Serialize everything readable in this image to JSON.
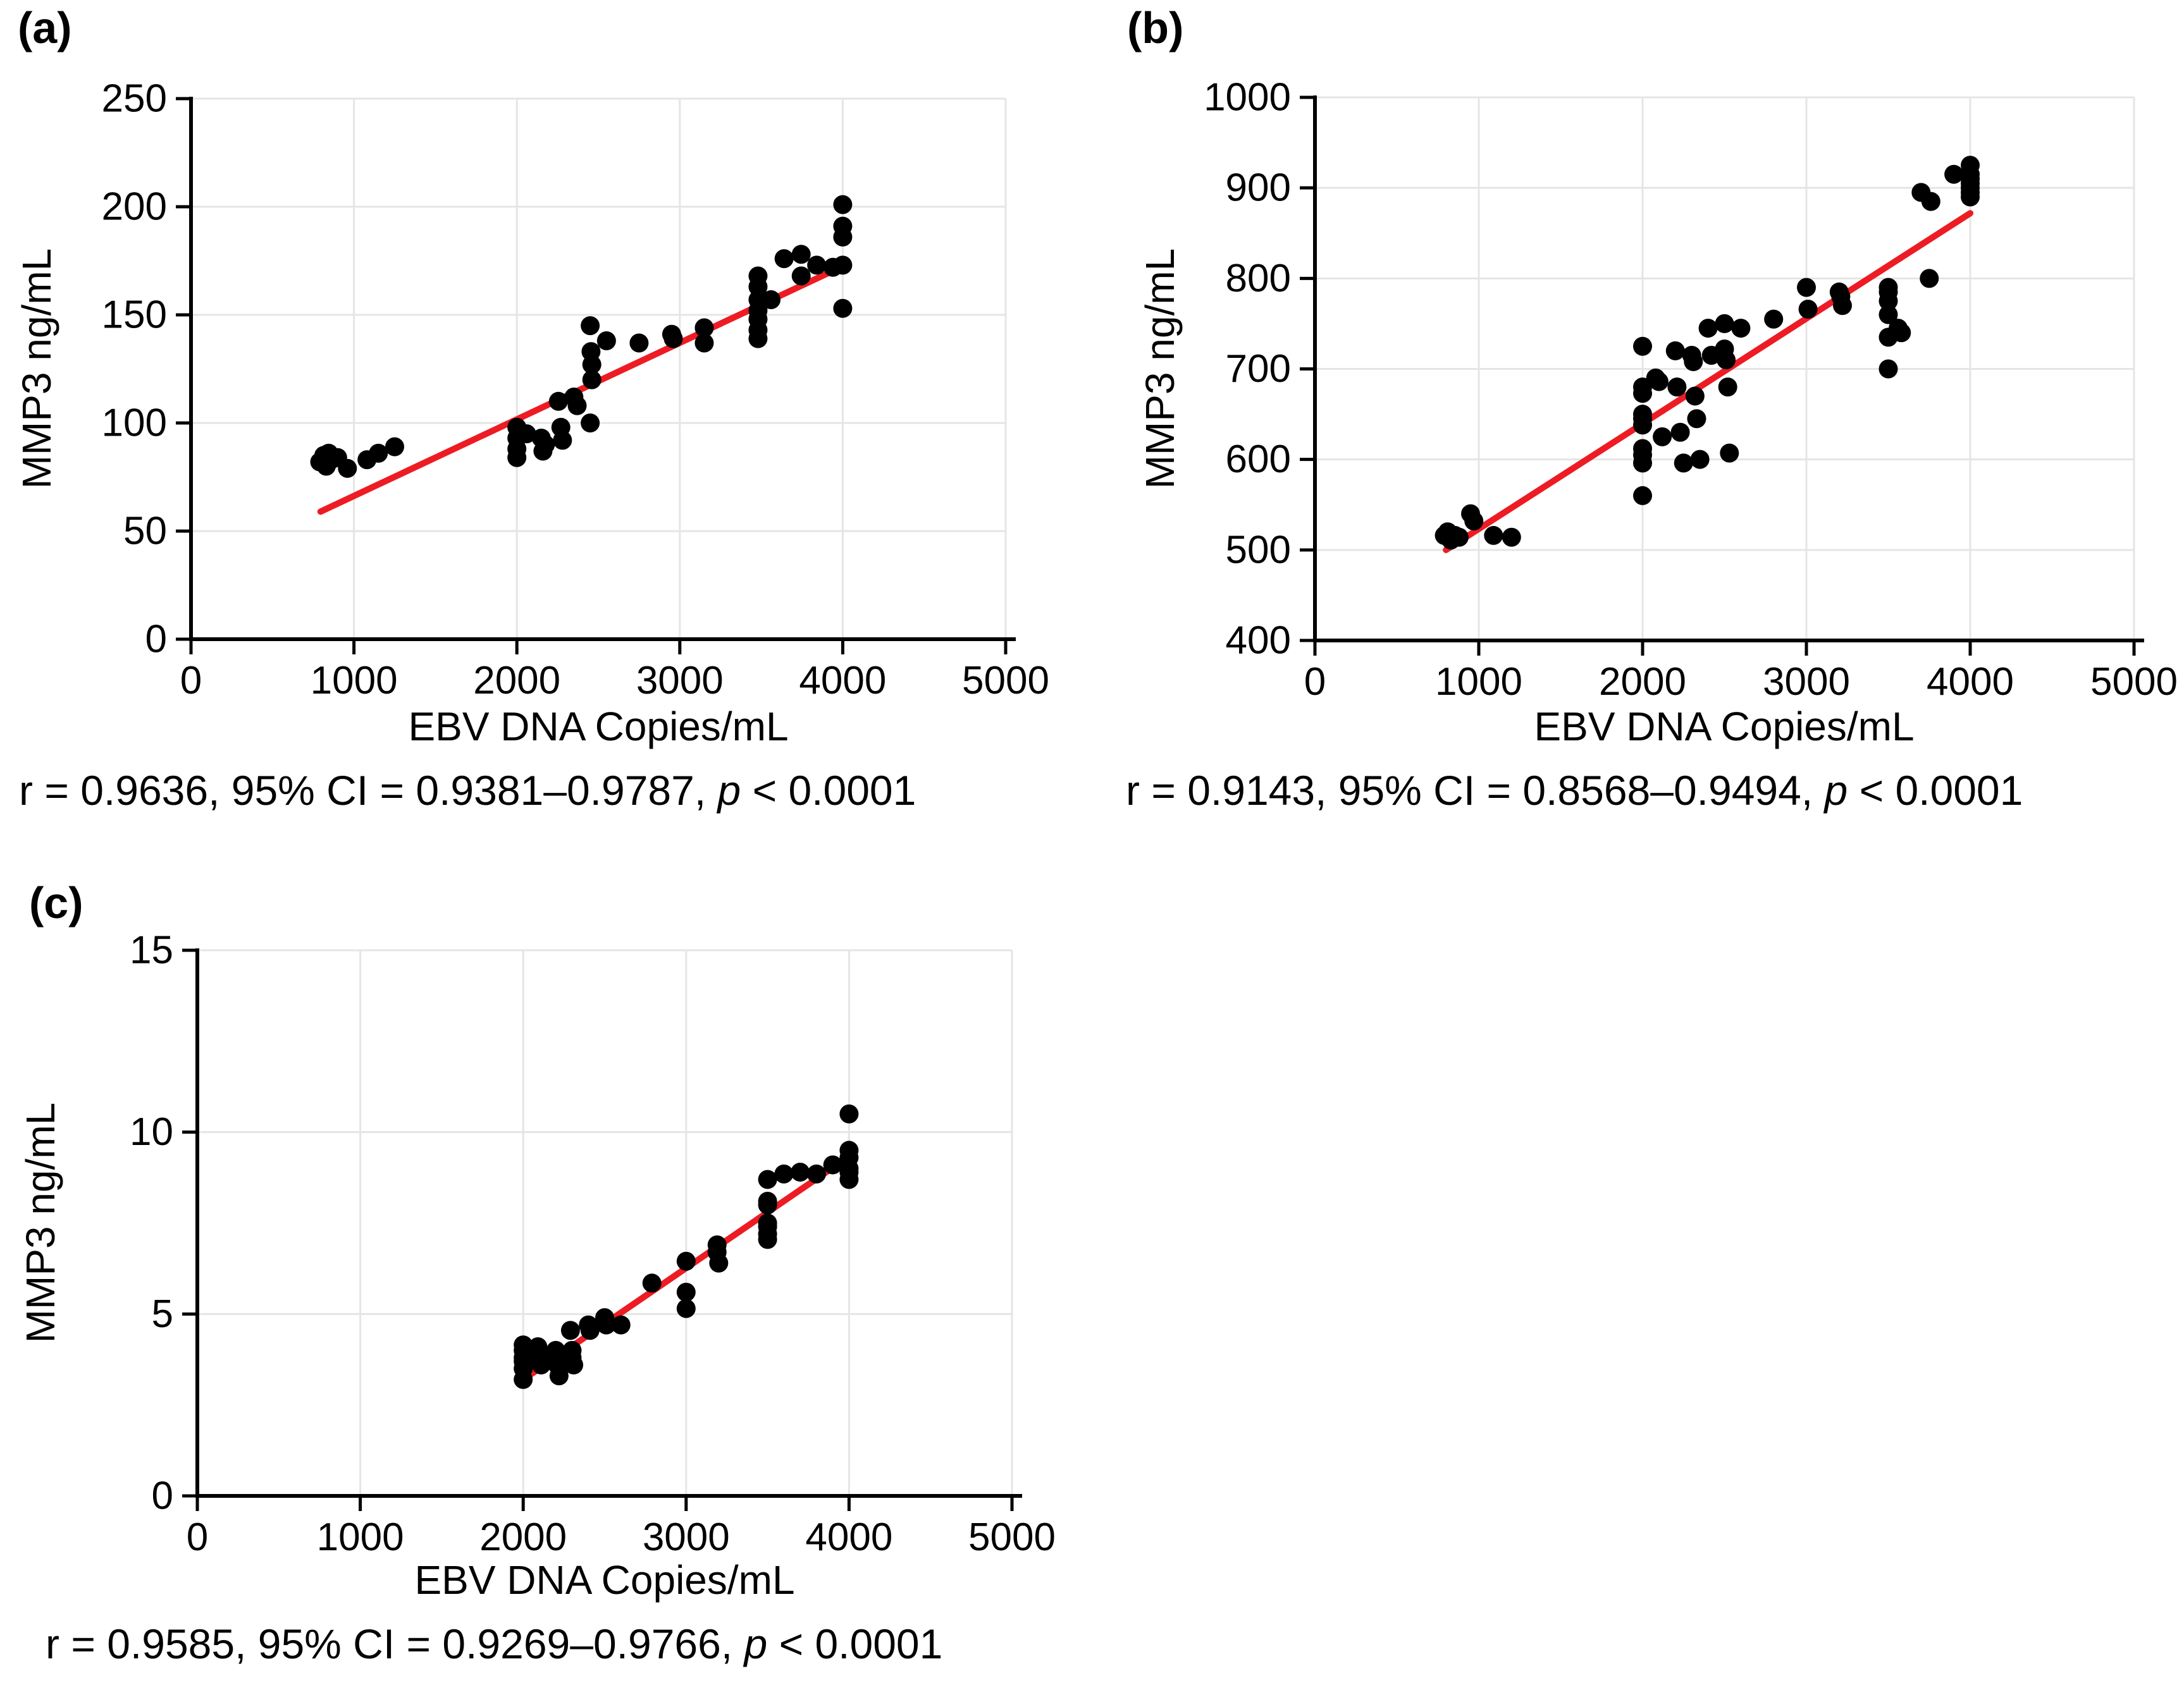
{
  "style": {
    "background": "#ffffff",
    "grid_color": "#e5e5e5",
    "axis_color": "#000000",
    "point_color": "#000000",
    "regression_color": "#ed1c24"
  },
  "panels": [
    {
      "label": "(a)",
      "xlabel": "EBV DNA Copies/mL",
      "ylabel": "MMP3 ng/mL",
      "stats_prefix": "r = 0.9636, 95% CI = 0.9381–0.9787, ",
      "stats_p": "p",
      "stats_suffix": " < 0.0001"
    },
    {
      "label": "(b)",
      "xlabel": "EBV DNA Copies/mL",
      "ylabel": "MMP3 ng/mL",
      "stats_prefix": "r = 0.9143, 95% CI = 0.8568–0.9494, ",
      "stats_p": "p",
      "stats_suffix": " < 0.0001"
    },
    {
      "label": "(c)",
      "xlabel": "EBV DNA Copies/mL",
      "ylabel": "MMP3 ng/mL",
      "stats_prefix": "r = 0.9585, 95% CI = 0.9269–0.9766, ",
      "stats_p": "p",
      "stats_suffix": " < 0.0001"
    }
  ],
  "chart_data": [
    {
      "type": "scatter",
      "id": "a",
      "title": "(a)",
      "xlabel": "EBV DNA Copies/mL",
      "ylabel": "MMP3 ng/mL",
      "xlim": [
        0,
        5000
      ],
      "ylim": [
        0,
        250
      ],
      "xticks": [
        0,
        1000,
        2000,
        3000,
        4000,
        5000
      ],
      "yticks": [
        0,
        50,
        100,
        150,
        200,
        250
      ],
      "grid": true,
      "legend": "none",
      "point_color": "#000000",
      "line_color": "#ed1c24",
      "stats": "r = 0.9636, 95% CI = 0.9381–0.9787, p < 0.0001",
      "regression_line": {
        "x1": 795,
        "y1": 59,
        "x2": 3930,
        "y2": 170
      },
      "points": [
        [
          790,
          82
        ],
        [
          815,
          85
        ],
        [
          830,
          80
        ],
        [
          845,
          86
        ],
        [
          860,
          83
        ],
        [
          900,
          84
        ],
        [
          960,
          79
        ],
        [
          1080,
          83
        ],
        [
          1150,
          86
        ],
        [
          1250,
          89
        ],
        [
          2000,
          98
        ],
        [
          2000,
          93
        ],
        [
          2000,
          88
        ],
        [
          2000,
          84
        ],
        [
          2060,
          95
        ],
        [
          2150,
          93
        ],
        [
          2160,
          87
        ],
        [
          2175,
          90
        ],
        [
          2255,
          110
        ],
        [
          2270,
          98
        ],
        [
          2280,
          92
        ],
        [
          2350,
          112
        ],
        [
          2370,
          108
        ],
        [
          2450,
          145
        ],
        [
          2455,
          133
        ],
        [
          2460,
          127
        ],
        [
          2460,
          120
        ],
        [
          2450,
          100
        ],
        [
          2550,
          138
        ],
        [
          2750,
          137
        ],
        [
          2950,
          141
        ],
        [
          2960,
          139
        ],
        [
          3150,
          144
        ],
        [
          3150,
          137
        ],
        [
          3480,
          168
        ],
        [
          3480,
          163
        ],
        [
          3480,
          157
        ],
        [
          3480,
          152
        ],
        [
          3480,
          148
        ],
        [
          3480,
          143
        ],
        [
          3480,
          139
        ],
        [
          3560,
          157
        ],
        [
          3640,
          176
        ],
        [
          3745,
          178
        ],
        [
          3745,
          168
        ],
        [
          3840,
          173
        ],
        [
          3940,
          172
        ],
        [
          4000,
          201
        ],
        [
          4000,
          191
        ],
        [
          4000,
          186
        ],
        [
          4000,
          173
        ],
        [
          4000,
          153
        ]
      ]
    },
    {
      "type": "scatter",
      "id": "b",
      "title": "(b)",
      "xlabel": "EBV DNA Copies/mL",
      "ylabel": "MMP3 ng/mL",
      "xlim": [
        0,
        5000
      ],
      "ylim": [
        400,
        1000
      ],
      "xticks": [
        0,
        1000,
        2000,
        3000,
        4000,
        5000
      ],
      "yticks": [
        400,
        500,
        600,
        700,
        800,
        900,
        1000
      ],
      "grid": true,
      "legend": "none",
      "point_color": "#000000",
      "line_color": "#ed1c24",
      "stats": "r = 0.9143, 95% CI = 0.8568–0.9494, p < 0.0001",
      "regression_line": {
        "x1": 800,
        "y1": 500,
        "x2": 4000,
        "y2": 872
      },
      "points": [
        [
          790,
          516
        ],
        [
          810,
          520
        ],
        [
          830,
          511
        ],
        [
          855,
          516
        ],
        [
          880,
          514
        ],
        [
          950,
          540
        ],
        [
          970,
          532
        ],
        [
          1090,
          516
        ],
        [
          1200,
          514
        ],
        [
          2000,
          725
        ],
        [
          2000,
          680
        ],
        [
          2000,
          673
        ],
        [
          2000,
          650
        ],
        [
          2000,
          645
        ],
        [
          2000,
          638
        ],
        [
          2000,
          612
        ],
        [
          2000,
          605
        ],
        [
          2000,
          596
        ],
        [
          2000,
          560
        ],
        [
          2080,
          690
        ],
        [
          2100,
          686
        ],
        [
          2120,
          625
        ],
        [
          2200,
          720
        ],
        [
          2210,
          680
        ],
        [
          2230,
          630
        ],
        [
          2250,
          596
        ],
        [
          2300,
          715
        ],
        [
          2310,
          708
        ],
        [
          2320,
          670
        ],
        [
          2330,
          645
        ],
        [
          2350,
          600
        ],
        [
          2400,
          745
        ],
        [
          2420,
          715
        ],
        [
          2500,
          750
        ],
        [
          2500,
          722
        ],
        [
          2510,
          710
        ],
        [
          2520,
          680
        ],
        [
          2530,
          607
        ],
        [
          2600,
          745
        ],
        [
          2800,
          755
        ],
        [
          3000,
          790
        ],
        [
          3010,
          766
        ],
        [
          3200,
          785
        ],
        [
          3210,
          780
        ],
        [
          3220,
          770
        ],
        [
          3500,
          790
        ],
        [
          3500,
          785
        ],
        [
          3500,
          775
        ],
        [
          3500,
          760
        ],
        [
          3500,
          735
        ],
        [
          3500,
          700
        ],
        [
          3560,
          745
        ],
        [
          3580,
          740
        ],
        [
          3700,
          895
        ],
        [
          3750,
          800
        ],
        [
          3760,
          885
        ],
        [
          3900,
          915
        ],
        [
          4000,
          925
        ],
        [
          4000,
          915
        ],
        [
          4000,
          910
        ],
        [
          4000,
          905
        ],
        [
          4000,
          900
        ],
        [
          4000,
          895
        ],
        [
          4000,
          890
        ]
      ]
    },
    {
      "type": "scatter",
      "id": "c",
      "title": "(c)",
      "xlabel": "EBV DNA Copies/mL",
      "ylabel": "MMP3 ng/mL",
      "xlim": [
        0,
        5000
      ],
      "ylim": [
        0,
        15
      ],
      "xticks": [
        0,
        1000,
        2000,
        3000,
        4000,
        5000
      ],
      "yticks": [
        0,
        5,
        10,
        15
      ],
      "grid": true,
      "legend": "none",
      "point_color": "#000000",
      "line_color": "#ed1c24",
      "stats": "r = 0.9585, 95% CI = 0.9269–0.9766, p < 0.0001",
      "regression_line": {
        "x1": 2050,
        "y1": 3.35,
        "x2": 3990,
        "y2": 9.3
      },
      "points": [
        [
          2000,
          4.15
        ],
        [
          2000,
          4.0
        ],
        [
          2000,
          3.8
        ],
        [
          2000,
          3.7
        ],
        [
          2000,
          3.5
        ],
        [
          2000,
          3.2
        ],
        [
          2090,
          4.1
        ],
        [
          2100,
          3.85
        ],
        [
          2110,
          3.6
        ],
        [
          2200,
          4.0
        ],
        [
          2210,
          3.8
        ],
        [
          2210,
          3.6
        ],
        [
          2220,
          3.3
        ],
        [
          2290,
          4.55
        ],
        [
          2300,
          4.0
        ],
        [
          2300,
          3.8
        ],
        [
          2310,
          3.6
        ],
        [
          2400,
          4.7
        ],
        [
          2410,
          4.55
        ],
        [
          2500,
          4.9
        ],
        [
          2510,
          4.7
        ],
        [
          2600,
          4.7
        ],
        [
          2790,
          5.85
        ],
        [
          3000,
          6.45
        ],
        [
          3000,
          5.6
        ],
        [
          3000,
          5.15
        ],
        [
          3190,
          6.9
        ],
        [
          3190,
          6.7
        ],
        [
          3200,
          6.4
        ],
        [
          3500,
          8.7
        ],
        [
          3500,
          8.1
        ],
        [
          3500,
          8.0
        ],
        [
          3500,
          7.5
        ],
        [
          3500,
          7.4
        ],
        [
          3500,
          7.2
        ],
        [
          3500,
          7.05
        ],
        [
          3600,
          8.85
        ],
        [
          3700,
          8.9
        ],
        [
          3800,
          8.85
        ],
        [
          3900,
          9.1
        ],
        [
          4000,
          10.5
        ],
        [
          4000,
          9.5
        ],
        [
          4000,
          9.3
        ],
        [
          4000,
          9.0
        ],
        [
          4000,
          8.9
        ],
        [
          4000,
          8.7
        ]
      ]
    }
  ]
}
